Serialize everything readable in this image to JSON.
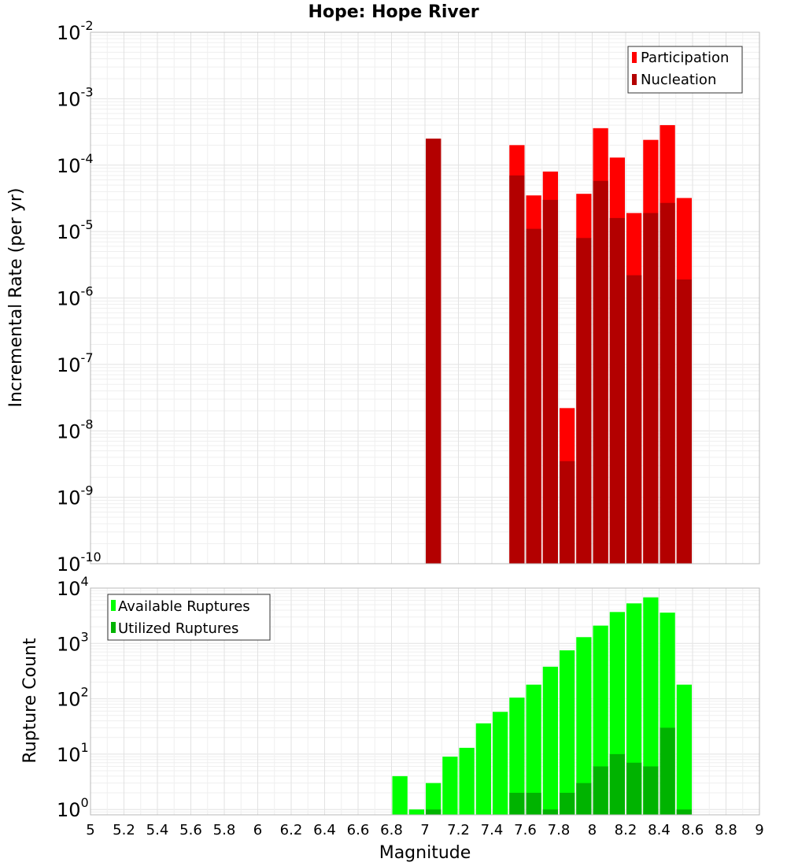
{
  "chart_data": [
    {
      "type": "bar",
      "title": "Hope: Hope River",
      "xlabel": "",
      "ylabel": "Incremental Rate (per yr)",
      "yscale": "log",
      "ylim": [
        1e-10,
        0.01
      ],
      "xlim": [
        5,
        9
      ],
      "bar_width": 0.1,
      "legend_position": "top-right",
      "grid": true,
      "y_tick_exponents": [
        "-10",
        "-9",
        "-8",
        "-7",
        "-6",
        "-5",
        "-4",
        "-3",
        "-2"
      ],
      "y_tick_base": "10",
      "series": [
        {
          "name": "Participation",
          "color": "#ff0000",
          "x": [
            7.05,
            7.55,
            7.65,
            7.75,
            7.85,
            7.95,
            8.05,
            8.15,
            8.25,
            8.35,
            8.45,
            8.55
          ],
          "values": [
            0.00025,
            0.0002,
            3.5e-05,
            8e-05,
            2.2e-08,
            3.7e-05,
            0.00036,
            0.00013,
            1.9e-05,
            0.00024,
            0.0004,
            3.2e-05
          ]
        },
        {
          "name": "Nucleation",
          "color": "#b30000",
          "x": [
            7.05,
            7.55,
            7.65,
            7.75,
            7.85,
            7.95,
            8.05,
            8.15,
            8.25,
            8.35,
            8.45,
            8.55
          ],
          "values": [
            0.00025,
            7e-05,
            1.1e-05,
            3e-05,
            3.5e-09,
            8e-06,
            5.8e-05,
            1.6e-05,
            2.2e-06,
            1.9e-05,
            2.7e-05,
            1.9e-06
          ]
        }
      ]
    },
    {
      "type": "bar",
      "title": "",
      "xlabel": "Magnitude",
      "ylabel": "Rupture Count",
      "yscale": "log",
      "ylim": [
        0.8,
        10000.0
      ],
      "xlim": [
        5,
        9
      ],
      "bar_width": 0.1,
      "legend_position": "top-left",
      "grid": true,
      "y_tick_exponents": [
        "0",
        "1",
        "2",
        "3",
        "4"
      ],
      "y_tick_base": "10",
      "x_ticks": [
        "5",
        "5.2",
        "5.4",
        "5.6",
        "5.8",
        "6",
        "6.2",
        "6.4",
        "6.6",
        "6.8",
        "7",
        "7.2",
        "7.4",
        "7.6",
        "7.8",
        "8",
        "8.2",
        "8.4",
        "8.6",
        "8.8",
        "9"
      ],
      "series": [
        {
          "name": "Available Ruptures",
          "color": "#00ff00",
          "x": [
            6.85,
            6.95,
            7.05,
            7.15,
            7.25,
            7.35,
            7.45,
            7.55,
            7.65,
            7.75,
            7.85,
            7.95,
            8.05,
            8.15,
            8.25,
            8.35,
            8.45,
            8.55
          ],
          "values": [
            4,
            1,
            3,
            9,
            13,
            36,
            58,
            105,
            180,
            380,
            750,
            1300,
            2100,
            3700,
            5300,
            6800,
            3600,
            180
          ]
        },
        {
          "name": "Utilized Ruptures",
          "color": "#00b300",
          "x": [
            7.05,
            7.55,
            7.65,
            7.75,
            7.85,
            7.95,
            8.05,
            8.15,
            8.25,
            8.35,
            8.45,
            8.55
          ],
          "values": [
            1,
            2,
            2,
            1,
            2,
            3,
            6,
            10,
            7,
            6,
            30,
            1
          ]
        }
      ]
    }
  ]
}
